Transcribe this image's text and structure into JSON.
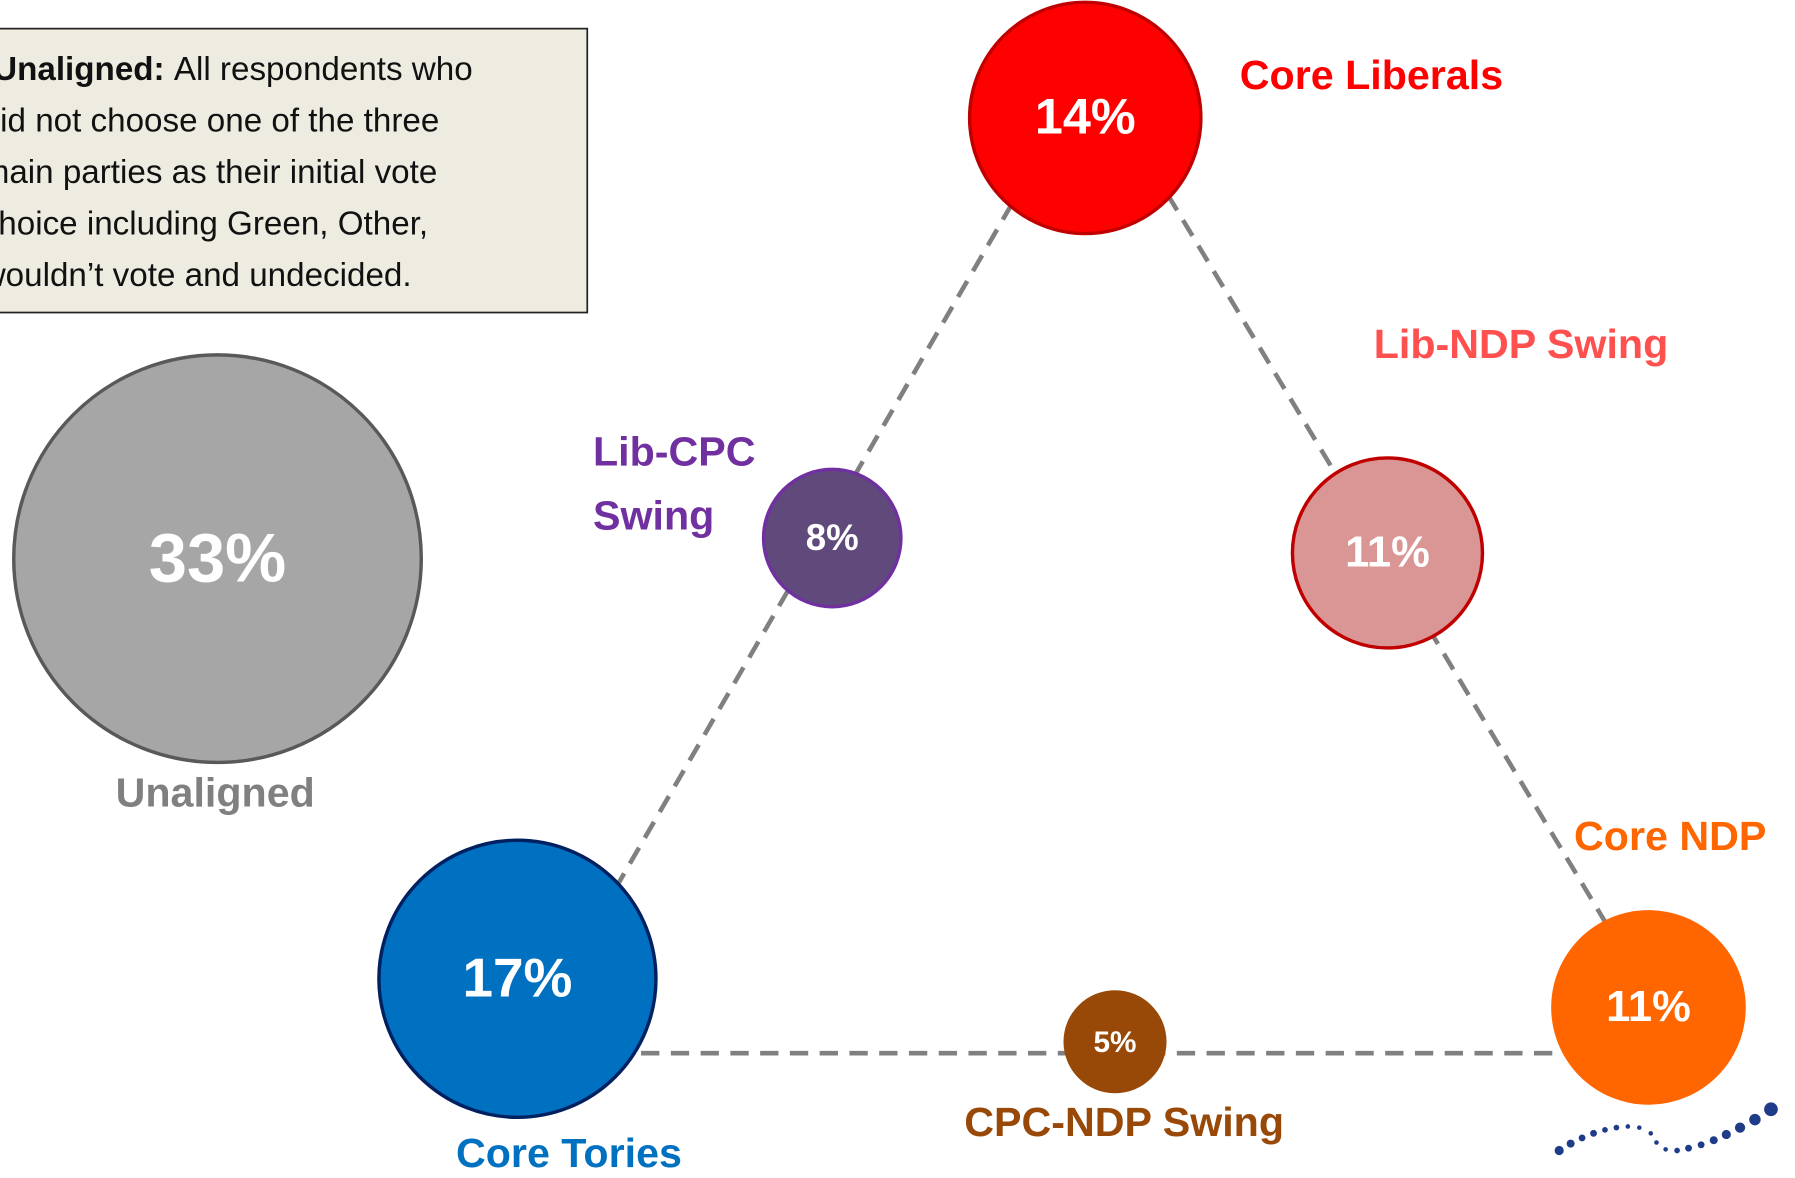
{
  "note": {
    "term": "Unaligned:",
    "lines": [
      "All respondents who",
      "did not choose one of the three",
      "main parties as their initial vote",
      "choice including Green, Other,",
      "wouldn’t vote and undecided."
    ]
  },
  "nodes": [
    {
      "label": "Core Liberals",
      "value": "14%"
    },
    {
      "label": "Lib-NDP Swing",
      "value": "11%"
    },
    {
      "label": [
        "Lib-CPC",
        "Swing"
      ],
      "value": "8%"
    },
    {
      "label": "Unaligned",
      "value": "33%"
    },
    {
      "label": "Core Tories",
      "value": "17%"
    },
    {
      "label": "CPC-NDP Swing",
      "value": "5%"
    },
    {
      "label": "Core NDP",
      "value": "11%"
    }
  ]
}
